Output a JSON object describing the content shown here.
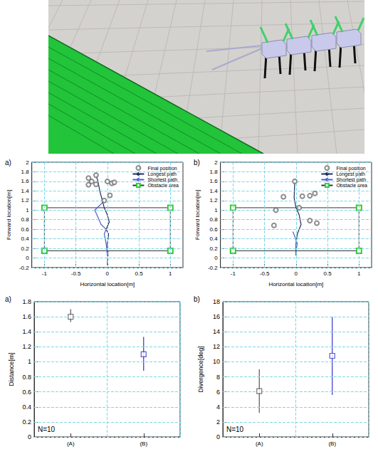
{
  "chart_data": [
    {
      "type": "scatter",
      "title": "a)",
      "x_label": "Horizontal location[m]",
      "y_label": "Forward location[m]",
      "xlim": [
        -1.2,
        1.2
      ],
      "xticks": [
        -1,
        -0.5,
        0,
        0.5,
        1
      ],
      "ylim": [
        -0.2,
        2
      ],
      "yticks": [
        -0.2,
        0,
        0.2,
        0.4,
        0.6,
        0.8,
        1,
        1.2,
        1.4,
        1.6,
        1.8,
        2
      ],
      "grid": true,
      "legend": "upper right",
      "series": [
        {
          "name": "Final position",
          "type": "scatter",
          "marker": "circle",
          "color": "#707070",
          "x": [
            -0.18,
            -0.3,
            -0.25,
            -0.3,
            -0.18,
            0.07,
            0.11,
            0.04,
            -0.05,
            0.0
          ],
          "y": [
            1.73,
            1.67,
            1.6,
            1.53,
            1.54,
            1.56,
            1.58,
            1.31,
            1.2,
            1.6
          ]
        },
        {
          "name": "Longest path",
          "type": "line",
          "color": "#1f2a5a",
          "x": [
            0,
            0.01,
            0,
            0.02,
            -0.02,
            0.03,
            0,
            -0.05,
            -0.08,
            -0.12,
            -0.15,
            -0.18
          ],
          "y": [
            -0.15,
            0.1,
            0.3,
            0.5,
            0.6,
            0.75,
            0.9,
            1.05,
            1.2,
            1.4,
            1.6,
            1.73
          ]
        },
        {
          "name": "Shortest path",
          "type": "line",
          "color": "#4a5fd0",
          "x": [
            0,
            -0.02,
            -0.05,
            -0.02,
            -0.1,
            -0.15,
            -0.2,
            -0.12,
            -0.05
          ],
          "y": [
            0.05,
            0.3,
            0.5,
            0.6,
            0.7,
            0.85,
            1.0,
            1.1,
            1.2
          ]
        },
        {
          "name": "Obstacle area",
          "type": "line",
          "marker": "square",
          "color": "#33cc33",
          "x": [
            -1,
            1,
            1,
            -1,
            -1
          ],
          "y": [
            0.15,
            0.15,
            1.05,
            1.05,
            0.15
          ]
        }
      ]
    },
    {
      "type": "scatter",
      "title": "b)",
      "x_label": "Horizontal location[m]",
      "y_label": "Forward location[m]",
      "xlim": [
        -1.2,
        1.2
      ],
      "xticks": [
        -1,
        -0.5,
        0,
        0.5,
        1
      ],
      "ylim": [
        -0.2,
        2
      ],
      "yticks": [
        -0.2,
        0,
        0.2,
        0.4,
        0.6,
        0.8,
        1,
        1.2,
        1.4,
        1.6,
        1.8,
        2
      ],
      "grid": true,
      "legend": "upper right",
      "series": [
        {
          "name": "Final position",
          "type": "scatter",
          "marker": "circle",
          "color": "#707070",
          "x": [
            -0.02,
            0.1,
            0.22,
            0.3,
            -0.2,
            0.05,
            -0.32,
            -0.35,
            0.22,
            0.33
          ],
          "y": [
            1.6,
            1.29,
            1.3,
            1.35,
            1.28,
            1.05,
            1.0,
            0.68,
            0.78,
            0.73
          ]
        },
        {
          "name": "Longest path",
          "type": "line",
          "color": "#1f2a5a",
          "x": [
            0,
            0,
            0.02,
            0.08,
            0.05,
            0,
            -0.03,
            -0.02
          ],
          "y": [
            0.05,
            0.3,
            0.5,
            0.7,
            0.9,
            1.05,
            1.25,
            1.6
          ]
        },
        {
          "name": "Shortest path",
          "type": "line",
          "color": "#4a5fd0",
          "x": [
            0,
            0.02,
            -0.02,
            -0.05
          ],
          "y": [
            0.15,
            0.3,
            0.45,
            0.55
          ]
        },
        {
          "name": "Obstacle area",
          "type": "line",
          "marker": "square",
          "color": "#33cc33",
          "x": [
            -1,
            1,
            1,
            -1,
            -1
          ],
          "y": [
            0.15,
            0.15,
            1.05,
            1.05,
            0.15
          ]
        }
      ]
    },
    {
      "type": "errorbar",
      "title": "a)",
      "y_label": "Distance[m]",
      "annotations": [
        "N=10"
      ],
      "categories": [
        "(A)",
        "(B)"
      ],
      "values": [
        1.6,
        1.1
      ],
      "error_low": [
        1.53,
        0.88
      ],
      "error_high": [
        1.7,
        1.33
      ],
      "colors": [
        "#555555",
        "#3333cc"
      ],
      "marker": "square",
      "ylim": [
        0,
        1.8
      ],
      "yticks": [
        0,
        0.2,
        0.4,
        0.6,
        0.8,
        1,
        1.2,
        1.4,
        1.6,
        1.8
      ],
      "grid": true
    },
    {
      "type": "errorbar",
      "title": "b)",
      "y_label": "Divergence[deg]",
      "annotations": [
        "N=10"
      ],
      "categories": [
        "(A)",
        "(B)"
      ],
      "values": [
        6.1,
        10.8
      ],
      "error_low": [
        3.2,
        5.6
      ],
      "error_high": [
        9.0,
        16.0
      ],
      "colors": [
        "#555555",
        "#3333cc"
      ],
      "marker": "square",
      "ylim": [
        0,
        18
      ],
      "yticks": [
        0,
        2,
        4,
        6,
        8,
        10,
        12,
        14,
        16,
        18
      ],
      "grid": true
    }
  ]
}
